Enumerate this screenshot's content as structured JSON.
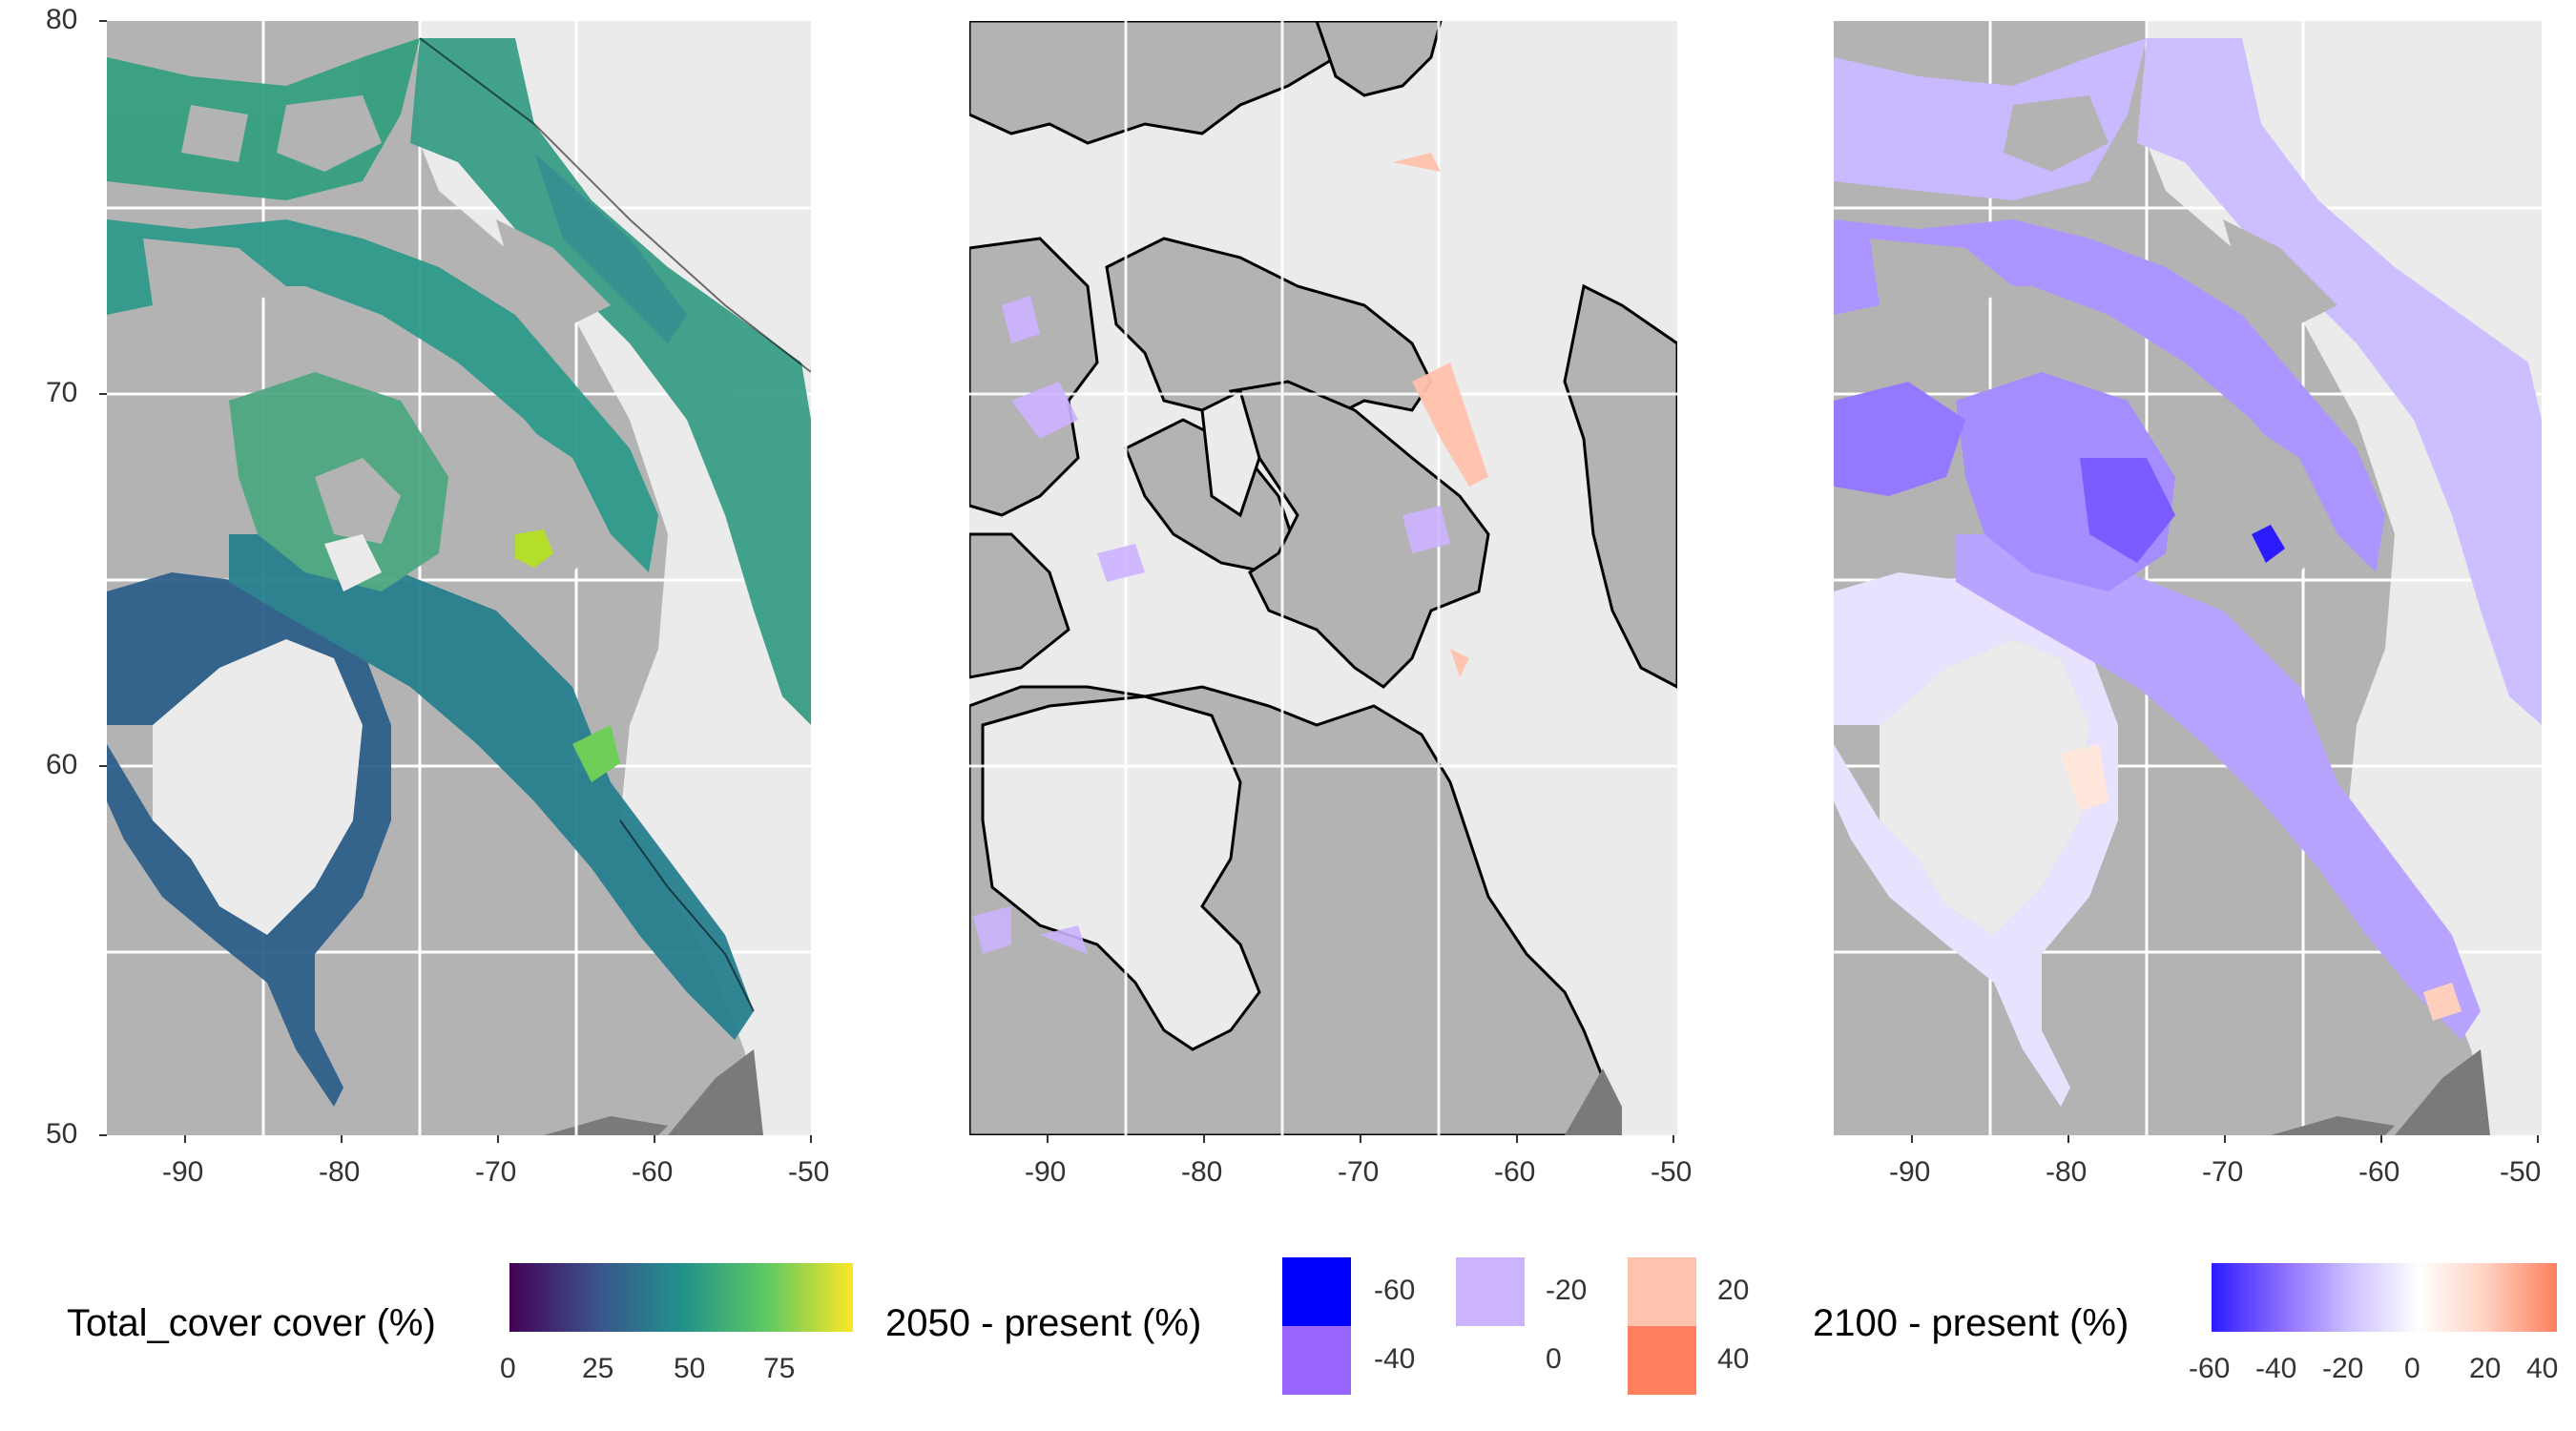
{
  "colors": {
    "land": "#b3b3b3",
    "panel_bg": "#ebebeb",
    "grid": "#ffffff",
    "coast": "#000000",
    "greenland_dark": "#7a7a7a"
  },
  "axes": {
    "x_ticks": [
      "-90",
      "-80",
      "-70",
      "-60",
      "-50"
    ],
    "y_ticks": [
      "80",
      "70",
      "60",
      "50"
    ]
  },
  "panels": [
    {
      "id": "present",
      "colormap": "viridis"
    },
    {
      "id": "2050",
      "colormap": "diverging-discrete"
    },
    {
      "id": "2100",
      "colormap": "diverging-continuous"
    }
  ],
  "legends": {
    "present": {
      "title": "Total_cover cover (%)",
      "ticks": [
        "0",
        "25",
        "50",
        "75"
      ],
      "colors": [
        "#440154",
        "#3b528b",
        "#21918c",
        "#5ec962",
        "#fde725"
      ]
    },
    "change_2050": {
      "title": "2050 - present (%)",
      "items": [
        {
          "label": "-60",
          "color": "#0000ff"
        },
        {
          "label": "-40",
          "color": "#9966ff"
        },
        {
          "label": "-20",
          "color": "#ccb3ff"
        },
        {
          "label": "0",
          "color": "#ffffff"
        },
        {
          "label": "20",
          "color": "#ffc2ad"
        },
        {
          "label": "40",
          "color": "#ff7f5e"
        }
      ]
    },
    "change_2100": {
      "title": "2100 - present (%)",
      "ticks": [
        "-60",
        "-40",
        "-20",
        "0",
        "20",
        "40"
      ],
      "colors": [
        "#2d1bff",
        "#8a6bff",
        "#cdbfff",
        "#ffffff",
        "#ffcfbe",
        "#ff7f5e"
      ]
    }
  }
}
